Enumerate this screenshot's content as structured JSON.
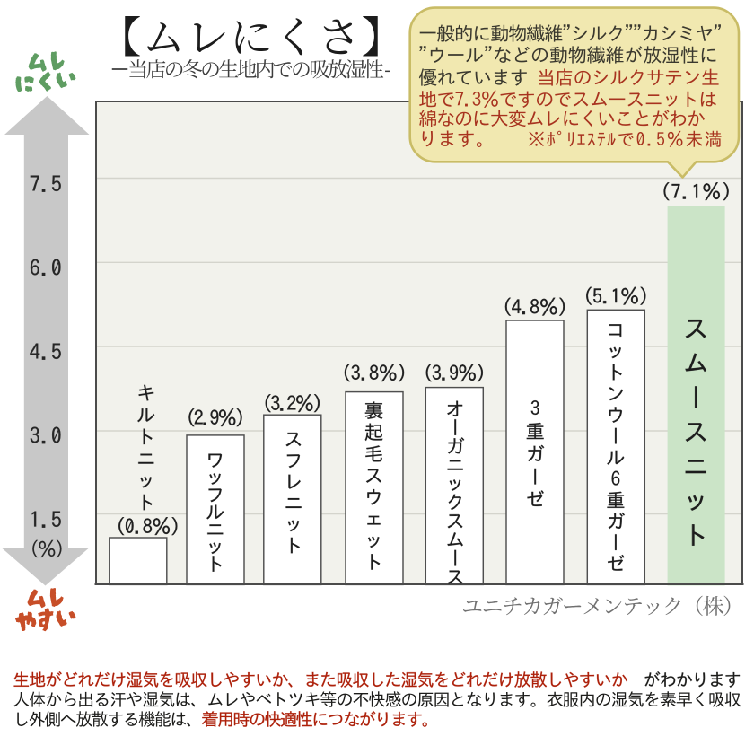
{
  "title": "【ムレにくさ】",
  "subtitle": "－当店の冬の生地内での吸放湿性 -",
  "y_axis": {
    "arrow_top_label": "ムレにくい",
    "arrow_top_label_lines": [
      "ムレ",
      "にくい"
    ],
    "arrow_bottom_label": "ムレやすい",
    "arrow_bottom_label_lines": [
      "ムレ",
      "やすい"
    ],
    "tick_labels": [
      "7.5",
      "6.0",
      "4.5",
      "3.0",
      "1.5"
    ],
    "unit_label": "(%)"
  },
  "chart_data": {
    "type": "bar",
    "title": "ムレにくさ",
    "subtitle": "当店の冬の生地内での吸放湿性",
    "categories": [
      "キルトニット",
      "ワッフルニット",
      "スフレニット",
      "裏起毛スウェット",
      "オーガニックスムース",
      "3重ガーゼ",
      "コットンウール6重ガーゼ",
      "スムースニット"
    ],
    "values": [
      0.8,
      2.9,
      3.2,
      3.8,
      3.9,
      4.8,
      5.1,
      7.1
    ],
    "value_labels": [
      "(0.8%)",
      "(2.9%)",
      "(3.2%)",
      "(3.8%)",
      "(3.9%)",
      "(4.8%)",
      "(5.1%)",
      "(7.1%)"
    ],
    "unit": "%",
    "yticks": [
      7.5,
      6.0,
      4.5,
      3.0,
      1.5
    ],
    "ylim": [
      0,
      9
    ],
    "grid": true,
    "legend": false,
    "bar_color": "#ffffff",
    "highlight": {
      "category": "スムースニット",
      "color": "#cbe4c7"
    }
  },
  "callout": {
    "lines": [
      [
        {
          "t": "一般的に動物繊維\"シルク\"\"カシミヤ\"",
          "c": "ink"
        }
      ],
      [
        {
          "t": "\"ウール\"などの動物繊維が放湿性に",
          "c": "ink"
        }
      ],
      [
        {
          "t": "優れています ",
          "c": "ink"
        },
        {
          "t": "当店のシルクサテン生",
          "c": "red"
        }
      ],
      [
        {
          "t": "地で7.3％ですのでスムースニットは",
          "c": "red"
        }
      ],
      [
        {
          "t": "綿なのに大変ムレにくいことがわか",
          "c": "red"
        }
      ],
      [
        {
          "t": "ります。",
          "c": "red"
        },
        {
          "t": "※ﾎﾟﾘｴｽﾃﾙで0.5％未満",
          "c": "red",
          "small": true
        }
      ]
    ],
    "fill": "#f1e8b0",
    "border": "#c9bc66",
    "text_color": "#3a382e",
    "accent_color": "#a8331f"
  },
  "attribution": "ユニチカガーメンテック（株）",
  "footnote": {
    "lines": [
      [
        {
          "t": "生地がどれだけ湿気を吸収しやすいか、また吸収した湿気をどれだけ放散しやすいか",
          "c": "red",
          "b": true
        },
        {
          "t": "　がわかります",
          "c": "ink",
          "b": true
        }
      ],
      [
        {
          "t": "人体から出る汗や湿気は、ムレやベトツキ等の不快感の原因となります。衣服内の湿気を素早く吸収",
          "c": "ink"
        }
      ],
      [
        {
          "t": "し外側へ放散する機能は、",
          "c": "ink"
        },
        {
          "t": "着用時の快適性につながります。",
          "c": "red",
          "b": true
        }
      ]
    ],
    "text_color": "#1d1d1b",
    "accent_color": "#ad200a"
  },
  "colors": {
    "page_bg": "#ffffff",
    "axis_label_top": "#5f9d62",
    "axis_label_bottom": "#c74e28",
    "arrow": "#c8c8c8",
    "plot_bg": "#f2f2ec",
    "plot_border": "#4b4b4b",
    "grid": "#d4d4cc",
    "bar_outline": "#4f4f4f",
    "value_label": "#1f1f1f",
    "bar_label": "#1d1d1d",
    "tick_label": "#262626",
    "title_color": "#1c1c1c",
    "subtitle_color": "#3c3c3c",
    "attribution": "#707070",
    "highlight_bar": "#cbe4c7"
  }
}
